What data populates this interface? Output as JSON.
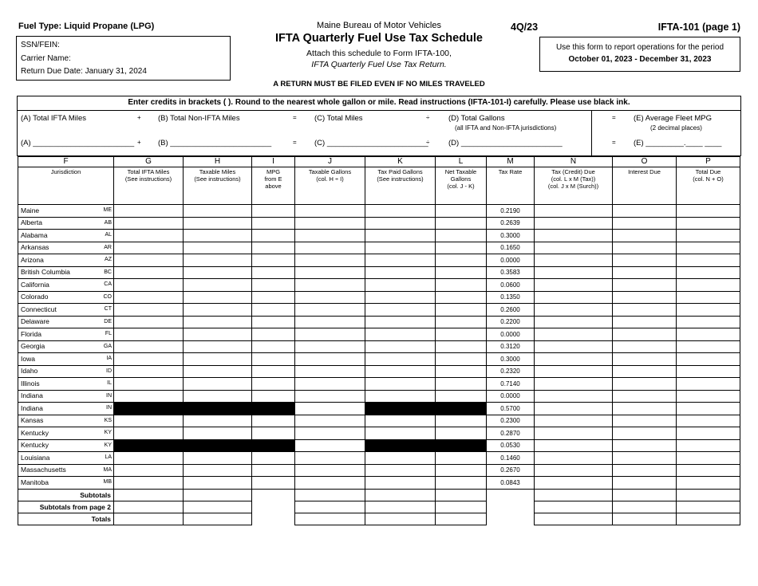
{
  "colors": {
    "ink": "#000000",
    "paper": "#ffffff",
    "redaction": "#000000"
  },
  "header": {
    "fuel_type": "Fuel Type:  Liquid Propane (LPG)",
    "agency": "Maine Bureau of Motor Vehicles",
    "title": "IFTA Quarterly Fuel Use Tax Schedule",
    "attach_line": "Attach this schedule to Form IFTA-100,",
    "return_line": "IFTA Quarterly Fuel Use Tax Return.",
    "quarter": "4Q/23",
    "form_number": "IFTA-101 (page 1)",
    "info_box": {
      "ssn_fein": "SSN/FEIN:",
      "carrier_name": "Carrier Name:",
      "return_due": "Return Due Date:  January 31, 2024"
    },
    "period_box": {
      "line1": "Use this form to report operations for the period",
      "line2": "October 01, 2023 - December 31, 2023"
    },
    "notice": "A RETURN MUST BE FILED EVEN IF NO MILES TRAVELED"
  },
  "banner": "Enter credits in brackets ( ).  Round to the nearest whole gallon or mile.  Read instructions (IFTA-101-I) carefully. Please use black ink.",
  "summary": {
    "a_label": "(A) Total IFTA Miles",
    "op_plus": "+",
    "b_label": "(B) Total Non-IFTA Miles",
    "op_eq1": "=",
    "c_label": "(C) Total Miles",
    "op_div": "÷",
    "d_label": "(D) Total Gallons",
    "d_note": "(all IFTA and Non-IFTA jurisdictions)",
    "op_eq2": "=",
    "e_label": "(E) Average Fleet MPG",
    "e_note": "(2 decimal places)",
    "a_blank": "(A) ________________________",
    "b_blank": "(B) ________________________",
    "c_blank": "(C) ________________________",
    "d_blank": "(D) ________________________",
    "e_blank": "(E) _________.____ ____"
  },
  "table": {
    "columns": [
      {
        "letter": "F",
        "desc": [
          "Jurisdiction"
        ]
      },
      {
        "letter": "G",
        "desc": [
          "Total IFTA Miles",
          "(See instructions)"
        ]
      },
      {
        "letter": "H",
        "desc": [
          "Taxable Miles",
          "(See instructions)"
        ]
      },
      {
        "letter": "I",
        "desc": [
          "MPG",
          "from E",
          "above"
        ]
      },
      {
        "letter": "J",
        "desc": [
          "Taxable Gallons",
          "(col. H ÷ I)"
        ]
      },
      {
        "letter": "K",
        "desc": [
          "Tax Paid Gallons",
          "(See instructions)"
        ]
      },
      {
        "letter": "L",
        "desc": [
          "Net Taxable",
          "Gallons",
          "(col. J - K)"
        ]
      },
      {
        "letter": "M",
        "desc": [
          "Tax Rate"
        ]
      },
      {
        "letter": "N",
        "desc": [
          "Tax (Credit) Due",
          "(col. L x M (Tax))",
          "(col. J x M (Surch))"
        ]
      },
      {
        "letter": "O",
        "desc": [
          "Interest Due"
        ]
      },
      {
        "letter": "P",
        "desc": [
          "Total Due",
          "(col. N + O)"
        ]
      }
    ],
    "rows": [
      {
        "name": "Maine",
        "code": "ME",
        "rate": "0.2190",
        "redacted": false
      },
      {
        "name": "Alberta",
        "code": "AB",
        "rate": "0.2639",
        "redacted": false
      },
      {
        "name": "Alabama",
        "code": "AL",
        "rate": "0.3000",
        "redacted": false
      },
      {
        "name": "Arkansas",
        "code": "AR",
        "rate": "0.1650",
        "redacted": false
      },
      {
        "name": "Arizona",
        "code": "AZ",
        "rate": "0.0000",
        "redacted": false
      },
      {
        "name": "British Columbia",
        "code": "BC",
        "rate": "0.3583",
        "redacted": false
      },
      {
        "name": "California",
        "code": "CA",
        "rate": "0.0600",
        "redacted": false
      },
      {
        "name": "Colorado",
        "code": "CO",
        "rate": "0.1350",
        "redacted": false
      },
      {
        "name": "Connecticut",
        "code": "CT",
        "rate": "0.2600",
        "redacted": false
      },
      {
        "name": "Delaware",
        "code": "DE",
        "rate": "0.2200",
        "redacted": false
      },
      {
        "name": "Florida",
        "code": "FL",
        "rate": "0.0000",
        "redacted": false
      },
      {
        "name": "Georgia",
        "code": "GA",
        "rate": "0.3120",
        "redacted": false
      },
      {
        "name": "Iowa",
        "code": "IA",
        "rate": "0.3000",
        "redacted": false
      },
      {
        "name": "Idaho",
        "code": "ID",
        "rate": "0.2320",
        "redacted": false
      },
      {
        "name": "Illinois",
        "code": "IL",
        "rate": "0.7140",
        "redacted": false
      },
      {
        "name": "Indiana",
        "code": "IN",
        "rate": "0.0000",
        "redacted": false
      },
      {
        "name": "Indiana",
        "code": "IN",
        "rate": "0.5700",
        "redacted": true
      },
      {
        "name": "Kansas",
        "code": "KS",
        "rate": "0.2300",
        "redacted": false
      },
      {
        "name": "Kentucky",
        "code": "KY",
        "rate": "0.2870",
        "redacted": false
      },
      {
        "name": "Kentucky",
        "code": "KY",
        "rate": "0.0530",
        "redacted": true
      },
      {
        "name": "Louisiana",
        "code": "LA",
        "rate": "0.1460",
        "redacted": false
      },
      {
        "name": "Massachusetts",
        "code": "MA",
        "rate": "0.2670",
        "redacted": false
      },
      {
        "name": "Manitoba",
        "code": "MB",
        "rate": "0.0843",
        "redacted": false
      }
    ],
    "footer_rows": [
      "Subtotals",
      "Subtotals from page 2",
      "Totals"
    ]
  }
}
